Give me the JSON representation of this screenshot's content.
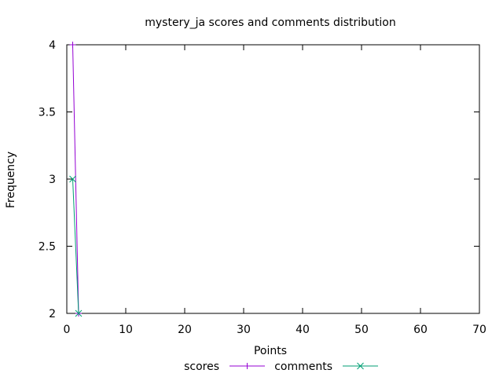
{
  "chart_data": {
    "type": "line",
    "title": "mystery_ja scores and comments distribution",
    "xlabel": "Points",
    "ylabel": "Frequency",
    "xlim": [
      0,
      70
    ],
    "ylim": [
      2,
      4
    ],
    "xticks": [
      "0",
      "10",
      "20",
      "30",
      "40",
      "50",
      "60",
      "70"
    ],
    "yticks": [
      "2",
      "2.5",
      "3",
      "3.5",
      "4"
    ],
    "grid": false,
    "legend_position": "bottom-center",
    "series": [
      {
        "name": "scores",
        "color": "#9400d3",
        "marker": "plus",
        "x": [
          1,
          2
        ],
        "y": [
          4,
          2
        ]
      },
      {
        "name": "comments",
        "color": "#009e73",
        "marker": "cross",
        "x": [
          1,
          2
        ],
        "y": [
          3,
          2
        ]
      }
    ]
  }
}
